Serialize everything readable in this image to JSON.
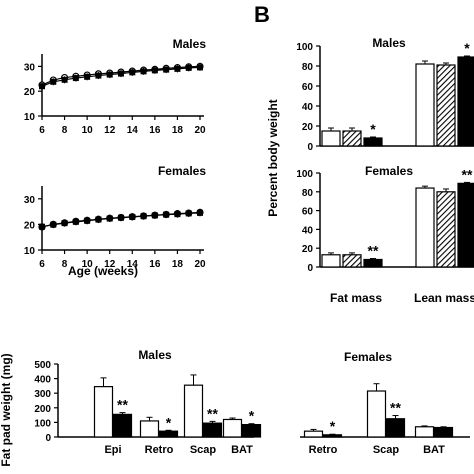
{
  "panel_label": "B",
  "chart_data": [
    {
      "id": "growth-males",
      "type": "line",
      "title": "Males",
      "xlabel": "Age (weeks)",
      "ylabel": "",
      "xlim": [
        6,
        20
      ],
      "ylim": [
        10,
        35
      ],
      "xticks": [
        "6",
        "8",
        "10",
        "12",
        "14",
        "16",
        "18",
        "20"
      ],
      "yticks": [
        "10",
        "20",
        "30"
      ],
      "x": [
        6,
        7,
        8,
        9,
        10,
        11,
        12,
        13,
        14,
        15,
        16,
        17,
        18,
        19,
        20
      ],
      "series": [
        {
          "values": [
            22.5,
            24.5,
            25.5,
            26.0,
            26.5,
            27.0,
            27.3,
            27.7,
            28.1,
            28.5,
            28.8,
            29.2,
            29.5,
            29.8,
            30.0
          ]
        },
        {
          "values": [
            22.0,
            23.8,
            24.6,
            25.3,
            25.8,
            26.3,
            26.7,
            27.1,
            27.6,
            28.0,
            28.4,
            28.7,
            29.0,
            29.4,
            29.6
          ]
        }
      ]
    },
    {
      "id": "growth-females",
      "type": "line",
      "title": "Females",
      "xlabel": "Age (weeks)",
      "ylabel": "",
      "xlim": [
        6,
        20
      ],
      "ylim": [
        10,
        35
      ],
      "xticks": [
        "6",
        "8",
        "10",
        "12",
        "14",
        "16",
        "18",
        "20"
      ],
      "yticks": [
        "10",
        "20",
        "30"
      ],
      "x": [
        6,
        7,
        8,
        9,
        10,
        11,
        12,
        13,
        14,
        15,
        16,
        17,
        18,
        19,
        20
      ],
      "series": [
        {
          "values": [
            19.0,
            20.0,
            20.6,
            21.2,
            21.6,
            22.0,
            22.4,
            22.7,
            23.0,
            23.3,
            23.6,
            23.9,
            24.2,
            24.4,
            24.7
          ]
        },
        {
          "values": [
            19.1,
            19.9,
            20.5,
            21.0,
            21.4,
            21.9,
            22.3,
            22.6,
            22.9,
            23.2,
            23.5,
            23.8,
            24.0,
            24.3,
            24.5
          ]
        }
      ]
    },
    {
      "id": "comp-males",
      "type": "bar",
      "title": "Males",
      "ylabel": "Percent body weight",
      "ylim": [
        0,
        100
      ],
      "yticks": [
        "0",
        "20",
        "40",
        "60",
        "80",
        "100"
      ],
      "categories": [
        "Fat mass",
        "Lean mass"
      ],
      "series": [
        {
          "fill": "open",
          "values": [
            15,
            82
          ],
          "errors": [
            3,
            3
          ]
        },
        {
          "fill": "hatched",
          "values": [
            15,
            81
          ],
          "errors": [
            3,
            2
          ]
        },
        {
          "fill": "solid",
          "values": [
            8,
            89
          ],
          "errors": [
            1,
            1
          ]
        }
      ],
      "annotations": [
        {
          "category": "Fat mass",
          "series": 2,
          "text": "*"
        },
        {
          "category": "Lean mass",
          "series": 2,
          "text": "*"
        }
      ]
    },
    {
      "id": "comp-females",
      "type": "bar",
      "title": "Females",
      "ylabel": "Percent body weight",
      "ylim": [
        0,
        100
      ],
      "yticks": [
        "0",
        "20",
        "40",
        "60",
        "80",
        "100"
      ],
      "categories": [
        "Fat mass",
        "Lean mass"
      ],
      "series": [
        {
          "fill": "open",
          "values": [
            13,
            84
          ],
          "errors": [
            2,
            2
          ]
        },
        {
          "fill": "hatched",
          "values": [
            13,
            80
          ],
          "errors": [
            2,
            3
          ]
        },
        {
          "fill": "solid",
          "values": [
            8,
            89
          ],
          "errors": [
            1,
            1
          ]
        }
      ],
      "annotations": [
        {
          "category": "Fat mass",
          "series": 2,
          "text": "**"
        },
        {
          "category": "Lean mass",
          "series": 2,
          "text": "**"
        }
      ]
    },
    {
      "id": "fatpad-males",
      "type": "bar",
      "title": "Males",
      "ylabel": "Fat pad weight (mg)",
      "ylim": [
        0,
        500
      ],
      "yticks": [
        "0",
        "100",
        "200",
        "300",
        "400",
        "500"
      ],
      "categories": [
        "Epi",
        "Retro",
        "Scap",
        "BAT"
      ],
      "series": [
        {
          "fill": "open",
          "values": [
            345,
            110,
            355,
            120
          ],
          "errors": [
            60,
            25,
            70,
            10
          ]
        },
        {
          "fill": "solid",
          "values": [
            155,
            40,
            95,
            85
          ],
          "errors": [
            12,
            6,
            12,
            6
          ]
        }
      ],
      "annotations": [
        {
          "category": "Epi",
          "series": 1,
          "text": "**"
        },
        {
          "category": "Retro",
          "series": 1,
          "text": "*"
        },
        {
          "category": "Scap",
          "series": 1,
          "text": "**"
        },
        {
          "category": "BAT",
          "series": 1,
          "text": "*"
        }
      ]
    },
    {
      "id": "fatpad-females",
      "type": "bar",
      "title": "Females",
      "ylabel": "",
      "ylim": [
        0,
        500
      ],
      "categories": [
        "Retro",
        "Scap",
        "BAT"
      ],
      "series": [
        {
          "fill": "open",
          "values": [
            40,
            315,
            70
          ],
          "errors": [
            12,
            50,
            6
          ]
        },
        {
          "fill": "solid",
          "values": [
            15,
            125,
            65
          ],
          "errors": [
            4,
            22,
            5
          ]
        }
      ],
      "annotations": [
        {
          "category": "Retro",
          "series": 1,
          "text": "*"
        },
        {
          "category": "Scap",
          "series": 1,
          "text": "**"
        }
      ]
    }
  ]
}
